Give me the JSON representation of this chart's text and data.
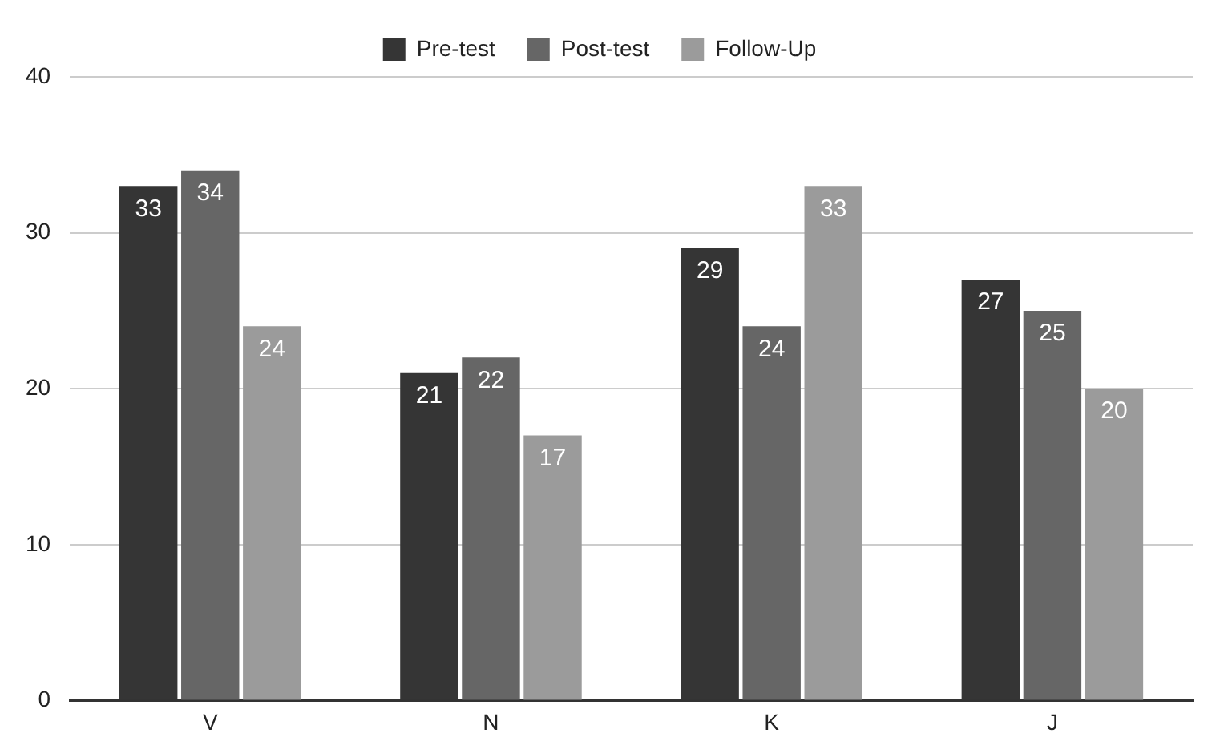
{
  "chart_data": {
    "type": "bar",
    "categories": [
      "V",
      "N",
      "K",
      "J"
    ],
    "series": [
      {
        "name": "Pre-test",
        "color": "#353535",
        "values": [
          33,
          21,
          29,
          27
        ]
      },
      {
        "name": "Post-test",
        "color": "#666666",
        "values": [
          34,
          22,
          24,
          25
        ]
      },
      {
        "name": "Follow-Up",
        "color": "#9b9b9b",
        "values": [
          24,
          17,
          33,
          20
        ]
      }
    ],
    "ylim": [
      0,
      40
    ],
    "yticks": [
      0,
      10,
      20,
      30,
      40
    ],
    "grid": "y",
    "legend": "top",
    "data_labels": true
  }
}
